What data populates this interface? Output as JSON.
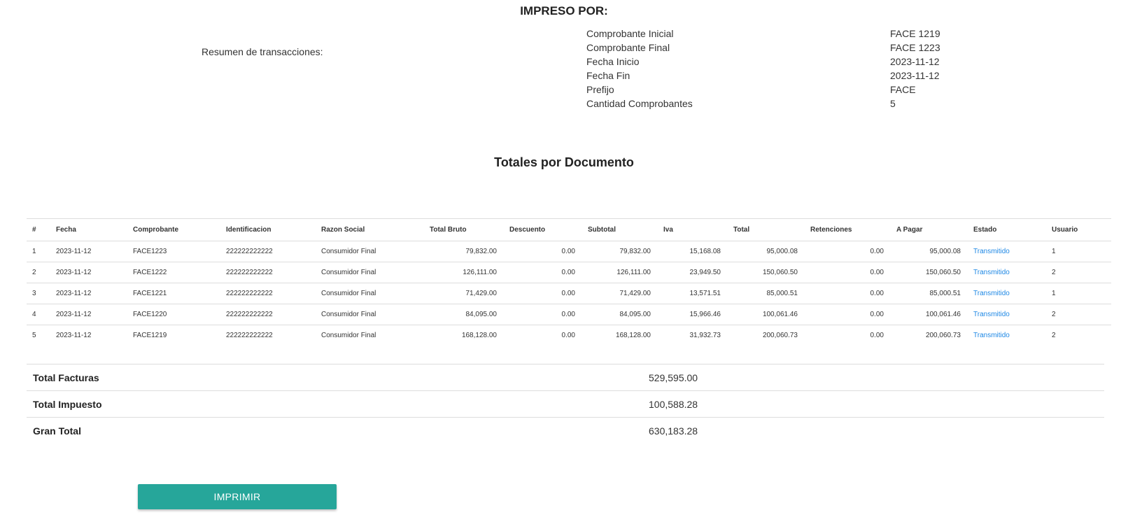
{
  "header": {
    "title": "IMPRESO POR:"
  },
  "summary": {
    "label": "Resumen de transacciones:",
    "rows": [
      {
        "key": "Comprobante Inicial",
        "value": "FACE 1219"
      },
      {
        "key": "Comprobante Final",
        "value": "FACE 1223"
      },
      {
        "key": "Fecha Inicio",
        "value": "2023-11-12"
      },
      {
        "key": "Fecha Fin",
        "value": "2023-11-12"
      },
      {
        "key": "Prefijo",
        "value": "FACE"
      },
      {
        "key": "Cantidad Comprobantes",
        "value": "5"
      }
    ]
  },
  "section_title": "Totales por Documento",
  "table": {
    "columns": [
      "#",
      "Fecha",
      "Comprobante",
      "Identificacion",
      "Razon Social",
      "Total Bruto",
      "Descuento",
      "Subtotal",
      "Iva",
      "Total",
      "Retenciones",
      "A Pagar",
      "Estado",
      "Usuario"
    ],
    "rows": [
      [
        "1",
        "2023-11-12",
        "FACE1223",
        "222222222222",
        "Consumidor Final",
        "79,832.00",
        "0.00",
        "79,832.00",
        "15,168.08",
        "95,000.08",
        "0.00",
        "95,000.08",
        "Transmitido",
        "1"
      ],
      [
        "2",
        "2023-11-12",
        "FACE1222",
        "222222222222",
        "Consumidor Final",
        "126,111.00",
        "0.00",
        "126,111.00",
        "23,949.50",
        "150,060.50",
        "0.00",
        "150,060.50",
        "Transmitido",
        "2"
      ],
      [
        "3",
        "2023-11-12",
        "FACE1221",
        "222222222222",
        "Consumidor Final",
        "71,429.00",
        "0.00",
        "71,429.00",
        "13,571.51",
        "85,000.51",
        "0.00",
        "85,000.51",
        "Transmitido",
        "1"
      ],
      [
        "4",
        "2023-11-12",
        "FACE1220",
        "222222222222",
        "Consumidor Final",
        "84,095.00",
        "0.00",
        "84,095.00",
        "15,966.46",
        "100,061.46",
        "0.00",
        "100,061.46",
        "Transmitido",
        "2"
      ],
      [
        "5",
        "2023-11-12",
        "FACE1219",
        "222222222222",
        "Consumidor Final",
        "168,128.00",
        "0.00",
        "168,128.00",
        "31,932.73",
        "200,060.73",
        "0.00",
        "200,060.73",
        "Transmitido",
        "2"
      ]
    ]
  },
  "totals": [
    {
      "key": "Total Facturas",
      "value": "529,595.00"
    },
    {
      "key": "Total Impuesto",
      "value": "100,588.28"
    },
    {
      "key": "Gran Total",
      "value": "630,183.28"
    }
  ],
  "print_button": {
    "label": "IMPRIMIR"
  },
  "colors": {
    "accent": "#26a69a",
    "status_link": "#1e88e5"
  }
}
